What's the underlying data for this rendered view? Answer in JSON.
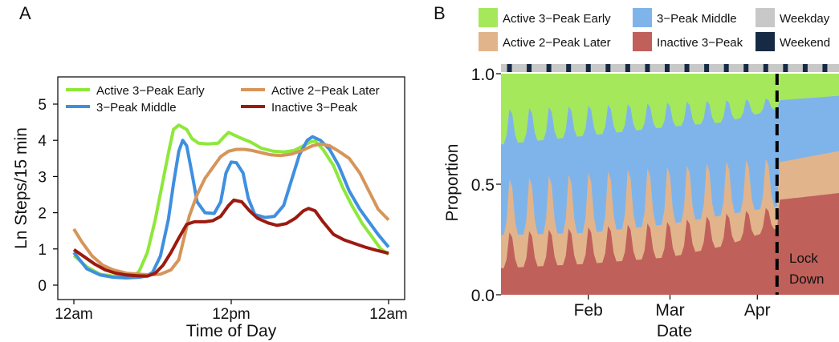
{
  "chart_data": [
    {
      "panel": "A",
      "type": "line",
      "title": "",
      "xlabel": "Time of Day",
      "ylabel": "Ln Steps/15 min",
      "xlim": [
        0,
        24
      ],
      "ylim": [
        0,
        5
      ],
      "x_ticks": [
        0,
        12,
        24
      ],
      "x_tick_labels": [
        "12am",
        "12pm",
        "12am"
      ],
      "y_ticks": [
        0,
        1,
        2,
        3,
        4,
        5
      ],
      "y_tick_labels": [
        "0",
        "1",
        "2",
        "3",
        "4",
        "5"
      ],
      "grid": false,
      "legend_position": "top",
      "series": [
        {
          "name": "Active 3−Peak Early",
          "color": "#8ee83a",
          "points": [
            [
              0,
              0.82
            ],
            [
              1,
              0.5
            ],
            [
              2,
              0.3
            ],
            [
              3,
              0.25
            ],
            [
              4,
              0.22
            ],
            [
              4.6,
              0.24
            ],
            [
              5,
              0.4
            ],
            [
              5.6,
              0.9
            ],
            [
              6.2,
              1.8
            ],
            [
              6.8,
              2.9
            ],
            [
              7.3,
              3.8
            ],
            [
              7.6,
              4.3
            ],
            [
              8,
              4.42
            ],
            [
              8.6,
              4.3
            ],
            [
              9,
              4.05
            ],
            [
              9.5,
              3.92
            ],
            [
              10.2,
              3.9
            ],
            [
              11,
              3.92
            ],
            [
              11.4,
              4.08
            ],
            [
              11.8,
              4.22
            ],
            [
              12.2,
              4.15
            ],
            [
              12.8,
              4.05
            ],
            [
              13.5,
              3.95
            ],
            [
              14.3,
              3.78
            ],
            [
              15.2,
              3.7
            ],
            [
              16,
              3.68
            ],
            [
              16.8,
              3.72
            ],
            [
              17.5,
              3.85
            ],
            [
              18,
              3.95
            ],
            [
              18.4,
              3.98
            ],
            [
              19,
              3.75
            ],
            [
              19.8,
              3.3
            ],
            [
              20.5,
              2.7
            ],
            [
              21.2,
              2.2
            ],
            [
              22,
              1.7
            ],
            [
              22.8,
              1.3
            ],
            [
              23.4,
              1.0
            ],
            [
              24,
              0.85
            ]
          ]
        },
        {
          "name": "3−Peak Middle",
          "color": "#3f8fe0",
          "points": [
            [
              0,
              0.9
            ],
            [
              1,
              0.45
            ],
            [
              2,
              0.28
            ],
            [
              3,
              0.22
            ],
            [
              4,
              0.2
            ],
            [
              5,
              0.22
            ],
            [
              5.5,
              0.25
            ],
            [
              6,
              0.35
            ],
            [
              6.6,
              0.8
            ],
            [
              7.2,
              1.8
            ],
            [
              7.6,
              2.8
            ],
            [
              8.0,
              3.7
            ],
            [
              8.3,
              4.0
            ],
            [
              8.6,
              3.85
            ],
            [
              9,
              3.1
            ],
            [
              9.4,
              2.3
            ],
            [
              10,
              2.0
            ],
            [
              10.7,
              1.98
            ],
            [
              11.2,
              2.3
            ],
            [
              11.6,
              3.1
            ],
            [
              12,
              3.4
            ],
            [
              12.4,
              3.38
            ],
            [
              12.9,
              3.1
            ],
            [
              13.3,
              2.4
            ],
            [
              13.8,
              1.95
            ],
            [
              14.6,
              1.87
            ],
            [
              15.3,
              1.9
            ],
            [
              16,
              2.2
            ],
            [
              16.6,
              2.9
            ],
            [
              17.2,
              3.6
            ],
            [
              17.8,
              4.0
            ],
            [
              18.2,
              4.1
            ],
            [
              18.8,
              4.0
            ],
            [
              19.5,
              3.75
            ],
            [
              20.2,
              3.3
            ],
            [
              21,
              2.6
            ],
            [
              21.8,
              2.1
            ],
            [
              22.5,
              1.75
            ],
            [
              23.2,
              1.4
            ],
            [
              24,
              1.05
            ]
          ]
        },
        {
          "name": "Active 2−Peak Later",
          "color": "#d6955a",
          "points": [
            [
              0,
              1.55
            ],
            [
              0.6,
              1.2
            ],
            [
              1.4,
              0.8
            ],
            [
              2.2,
              0.55
            ],
            [
              3,
              0.42
            ],
            [
              4,
              0.33
            ],
            [
              5,
              0.3
            ],
            [
              5.8,
              0.28
            ],
            [
              6.6,
              0.3
            ],
            [
              7.4,
              0.42
            ],
            [
              8,
              0.7
            ],
            [
              8.4,
              1.3
            ],
            [
              8.8,
              1.9
            ],
            [
              9.4,
              2.5
            ],
            [
              10,
              2.95
            ],
            [
              10.6,
              3.25
            ],
            [
              11.2,
              3.55
            ],
            [
              11.8,
              3.7
            ],
            [
              12.4,
              3.75
            ],
            [
              13,
              3.75
            ],
            [
              13.6,
              3.72
            ],
            [
              14.4,
              3.65
            ],
            [
              15,
              3.6
            ],
            [
              15.8,
              3.58
            ],
            [
              16.6,
              3.62
            ],
            [
              17.4,
              3.72
            ],
            [
              18.2,
              3.85
            ],
            [
              18.8,
              3.9
            ],
            [
              19.5,
              3.85
            ],
            [
              20.2,
              3.7
            ],
            [
              21,
              3.5
            ],
            [
              21.8,
              3.1
            ],
            [
              22.5,
              2.6
            ],
            [
              23.2,
              2.1
            ],
            [
              24,
              1.8
            ]
          ]
        },
        {
          "name": "Inactive 3−Peak",
          "color": "#9c1a10",
          "points": [
            [
              0,
              0.98
            ],
            [
              0.8,
              0.78
            ],
            [
              1.6,
              0.58
            ],
            [
              2.4,
              0.42
            ],
            [
              3.2,
              0.33
            ],
            [
              4,
              0.28
            ],
            [
              4.8,
              0.26
            ],
            [
              5.6,
              0.25
            ],
            [
              6.2,
              0.33
            ],
            [
              6.8,
              0.55
            ],
            [
              7.4,
              0.9
            ],
            [
              8,
              1.3
            ],
            [
              8.6,
              1.68
            ],
            [
              9.2,
              1.75
            ],
            [
              10,
              1.75
            ],
            [
              10.6,
              1.78
            ],
            [
              11.2,
              1.9
            ],
            [
              11.8,
              2.2
            ],
            [
              12.2,
              2.35
            ],
            [
              12.8,
              2.3
            ],
            [
              13.4,
              2.05
            ],
            [
              14,
              1.85
            ],
            [
              14.8,
              1.72
            ],
            [
              15.5,
              1.65
            ],
            [
              16.2,
              1.7
            ],
            [
              16.9,
              1.85
            ],
            [
              17.5,
              2.05
            ],
            [
              17.9,
              2.12
            ],
            [
              18.4,
              2.05
            ],
            [
              19,
              1.75
            ],
            [
              19.8,
              1.4
            ],
            [
              20.6,
              1.25
            ],
            [
              21.4,
              1.15
            ],
            [
              22.2,
              1.05
            ],
            [
              23,
              0.97
            ],
            [
              24,
              0.88
            ]
          ]
        }
      ]
    },
    {
      "panel": "B",
      "type": "area",
      "title": "",
      "xlabel": "Date",
      "ylabel": "Proportion",
      "xlim": [
        "2020-01-01",
        "2020-04-30"
      ],
      "ylim": [
        0,
        1
      ],
      "y_ticks": [
        0,
        0.5,
        1.0
      ],
      "y_tick_labels": [
        "0.0",
        "0.5",
        "1.0"
      ],
      "x_ticks": [
        "2020-02-01",
        "2020-03-01",
        "2020-04-01"
      ],
      "x_tick_labels": [
        "Feb",
        "Mar",
        "Apr"
      ],
      "grid": false,
      "legend_position": "top",
      "stack_order_bottom_to_top": [
        "Inactive 3−Peak",
        "Active 2−Peak Later",
        "3−Peak Middle",
        "Active 3−Peak Early"
      ],
      "series": [
        {
          "name": "Inactive 3−Peak",
          "color": "#c0605a"
        },
        {
          "name": "Active 2−Peak Later",
          "color": "#e2b48c"
        },
        {
          "name": "3−Peak Middle",
          "color": "#7fb4ea"
        },
        {
          "name": "Active 3−Peak Early",
          "color": "#a6e85c"
        }
      ],
      "weekday_band": [
        {
          "name": "Weekday",
          "color": "#c8c8c8"
        },
        {
          "name": "Weekend",
          "color": "#162a44"
        }
      ],
      "cumulative_boundaries_weekday": [
        {
          "date": "2020-01-01",
          "values": [
            0.12,
            0.27,
            0.68
          ]
        },
        {
          "date": "2020-02-01",
          "values": [
            0.14,
            0.28,
            0.72
          ]
        },
        {
          "date": "2020-03-01",
          "values": [
            0.17,
            0.32,
            0.76
          ]
        },
        {
          "date": "2020-03-20",
          "values": [
            0.22,
            0.36,
            0.78
          ]
        },
        {
          "date": "2020-04-08",
          "values": [
            0.3,
            0.4,
            0.84
          ]
        },
        {
          "date": "2020-04-09",
          "values": [
            0.43,
            0.6,
            0.88
          ]
        },
        {
          "date": "2020-04-30",
          "values": [
            0.46,
            0.65,
            0.9
          ]
        }
      ],
      "cumulative_boundaries_weekend": [
        {
          "date": "2020-01-01",
          "values": [
            0.28,
            0.52,
            0.84
          ]
        },
        {
          "date": "2020-03-01",
          "values": [
            0.33,
            0.58,
            0.87
          ]
        },
        {
          "date": "2020-04-08",
          "values": [
            0.4,
            0.62,
            0.89
          ]
        }
      ],
      "annotations": [
        {
          "type": "vline",
          "date": "2020-04-08",
          "style": "dashed",
          "color": "#000000",
          "text_lines": [
            "Lock",
            "Down"
          ]
        }
      ]
    }
  ],
  "panel_labels": {
    "a": "A",
    "b": "B"
  },
  "legend_a": {
    "row1_left": "Active 3−Peak Early",
    "row1_right": "Active 2−Peak Later",
    "row2_left": "3−Peak Middle",
    "row2_right": "Inactive 3−Peak"
  },
  "legend_b": {
    "col1_row1": "Active 3−Peak Early",
    "col1_row2": "Active 2−Peak Later",
    "col2_row1": "3−Peak Middle",
    "col2_row2": "Inactive 3−Peak",
    "col3_row1": "Weekday",
    "col3_row2": "Weekend"
  },
  "lockdown_label": {
    "line1": "Lock",
    "line2": "Down"
  }
}
